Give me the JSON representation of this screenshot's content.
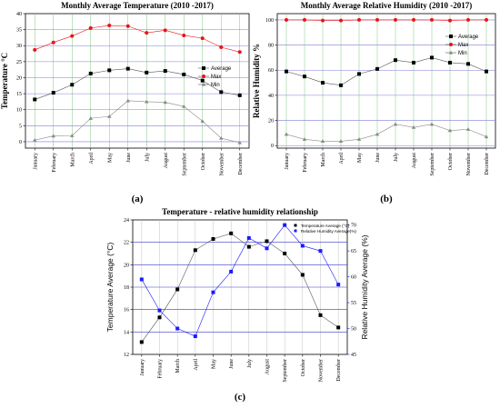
{
  "months": [
    "January",
    "February",
    "March",
    "April",
    "May",
    "June",
    "July",
    "August",
    "September",
    "October",
    "November",
    "December"
  ],
  "chart_data": [
    {
      "type": "line",
      "panel": "(a)",
      "title": "Monthly Average Temperature (2010 -2017)",
      "xlabel": "",
      "ylabel": "Temperature °C",
      "ylim": [
        -2,
        40
      ],
      "yticks": [
        0,
        5,
        10,
        15,
        20,
        25,
        30,
        35,
        40
      ],
      "legend_position": "right",
      "grid": true,
      "series": [
        {
          "name": "Average",
          "color": "#000000",
          "marker": "square",
          "values": [
            13.2,
            15.3,
            17.8,
            21.3,
            22.3,
            22.8,
            21.6,
            22.1,
            21.0,
            19.1,
            15.5,
            14.5
          ]
        },
        {
          "name": "Max",
          "color": "#e8141a",
          "marker": "circle",
          "values": [
            28.7,
            31.0,
            33.0,
            35.5,
            36.3,
            36.1,
            34.0,
            34.8,
            33.2,
            32.3,
            29.5,
            28.0
          ]
        },
        {
          "name": "Min",
          "color": "#8a8a8a",
          "marker": "triangle",
          "values": [
            0.5,
            1.8,
            1.9,
            7.3,
            7.9,
            12.8,
            12.5,
            12.3,
            11.0,
            6.4,
            1.1,
            -0.3
          ]
        }
      ]
    },
    {
      "type": "line",
      "panel": "(b)",
      "title": "Monthly Average Relative Humidity (2010 -2017)",
      "xlabel": "",
      "ylabel": "Relative Humidity %",
      "ylim": [
        -2,
        105
      ],
      "yticks": [
        0,
        20,
        40,
        60,
        80,
        100
      ],
      "legend_position": "right",
      "grid": true,
      "series": [
        {
          "name": "Average",
          "color": "#000000",
          "marker": "square",
          "values": [
            59,
            55,
            50,
            48,
            57,
            61,
            68,
            66,
            70,
            66,
            65,
            59
          ]
        },
        {
          "name": "Max",
          "color": "#e8141a",
          "marker": "circle",
          "values": [
            100,
            100,
            99.5,
            99.5,
            100,
            100,
            100,
            100,
            100,
            99.5,
            100,
            100
          ]
        },
        {
          "name": "Min",
          "color": "#8a8a8a",
          "marker": "triangle",
          "values": [
            9,
            5,
            3.5,
            3.5,
            5,
            9,
            17,
            14.5,
            17,
            12,
            13,
            7
          ]
        }
      ]
    },
    {
      "type": "line",
      "panel": "(c)",
      "title": "Temperature - relative humidity relationship",
      "xlabel": "",
      "ylabel": "Temperature Average (°C)",
      "ylabel_right": "Relative Humidity Average (%)",
      "ylim": [
        12,
        24
      ],
      "ylim_right": [
        45,
        71
      ],
      "yticks": [
        12,
        14,
        16,
        18,
        20,
        22,
        24
      ],
      "yticks_right": [
        45,
        50,
        55,
        60,
        65,
        70
      ],
      "legend_position": "top-right",
      "grid": true,
      "series": [
        {
          "name": "Temperature Average (°C)",
          "color": "#000000",
          "marker": "square",
          "axis": "left",
          "values": [
            13.1,
            15.3,
            17.8,
            21.3,
            22.3,
            22.8,
            21.6,
            22.1,
            21.0,
            19.1,
            15.5,
            14.4
          ]
        },
        {
          "name": "Relative Humidity Average(%)",
          "color": "#1a1aff",
          "marker": "square",
          "axis": "right",
          "values": [
            59.5,
            53.5,
            50.0,
            48.5,
            57.0,
            61.0,
            67.5,
            65.5,
            70.0,
            66.0,
            65.0,
            58.5
          ]
        }
      ]
    }
  ]
}
